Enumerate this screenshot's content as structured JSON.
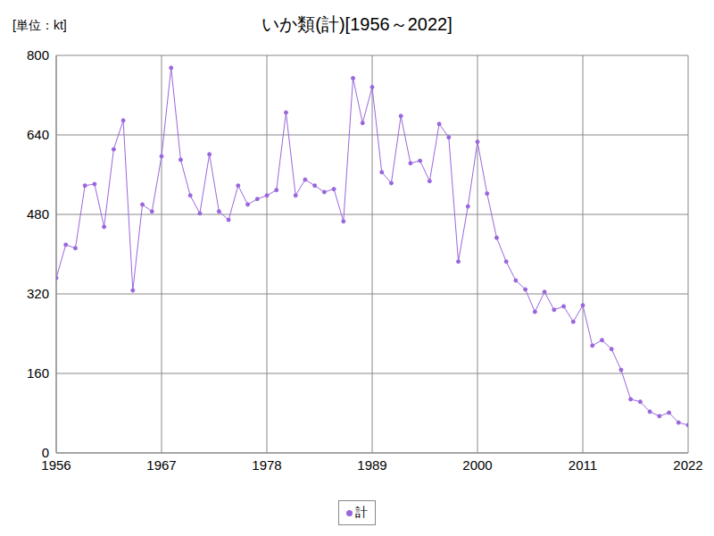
{
  "chart_data": {
    "type": "line",
    "title": "いか類(計)[1956～2022]",
    "ylabel": "[単位：kt]",
    "x": [
      1956,
      1957,
      1958,
      1959,
      1960,
      1961,
      1962,
      1963,
      1964,
      1965,
      1966,
      1967,
      1968,
      1969,
      1970,
      1971,
      1972,
      1973,
      1974,
      1975,
      1976,
      1977,
      1978,
      1979,
      1980,
      1981,
      1982,
      1983,
      1984,
      1985,
      1986,
      1987,
      1988,
      1989,
      1990,
      1991,
      1992,
      1993,
      1994,
      1995,
      1996,
      1997,
      1998,
      1999,
      2000,
      2001,
      2002,
      2003,
      2004,
      2005,
      2006,
      2007,
      2008,
      2009,
      2010,
      2011,
      2012,
      2013,
      2014,
      2015,
      2016,
      2017,
      2018,
      2019,
      2020,
      2021,
      2022
    ],
    "series": [
      {
        "name": "計",
        "color": "#9966dd",
        "marker": "circle",
        "line_style": "solid",
        "values": [
          352,
          419,
          412,
          538,
          541,
          455,
          611,
          669,
          327,
          500,
          486,
          597,
          775,
          590,
          518,
          482,
          601,
          486,
          469,
          538,
          500,
          511,
          518,
          529,
          685,
          518,
          550,
          538,
          525,
          531,
          466,
          754,
          664,
          736,
          565,
          543,
          678,
          583,
          588,
          547,
          662,
          635,
          385,
          496,
          626,
          522,
          433,
          385,
          347,
          329,
          284,
          324,
          288,
          295,
          264,
          297,
          216,
          227,
          209,
          167,
          108,
          103,
          83,
          74,
          81,
          61,
          56
        ]
      }
    ],
    "xlim": [
      1956,
      2022
    ],
    "xticks": [
      1956,
      1967,
      1978,
      1989,
      2000,
      2011,
      2022
    ],
    "ylim": [
      0,
      800
    ],
    "yticks": [
      0,
      160,
      320,
      480,
      640,
      800
    ],
    "grid": true,
    "legend": "bottom"
  }
}
